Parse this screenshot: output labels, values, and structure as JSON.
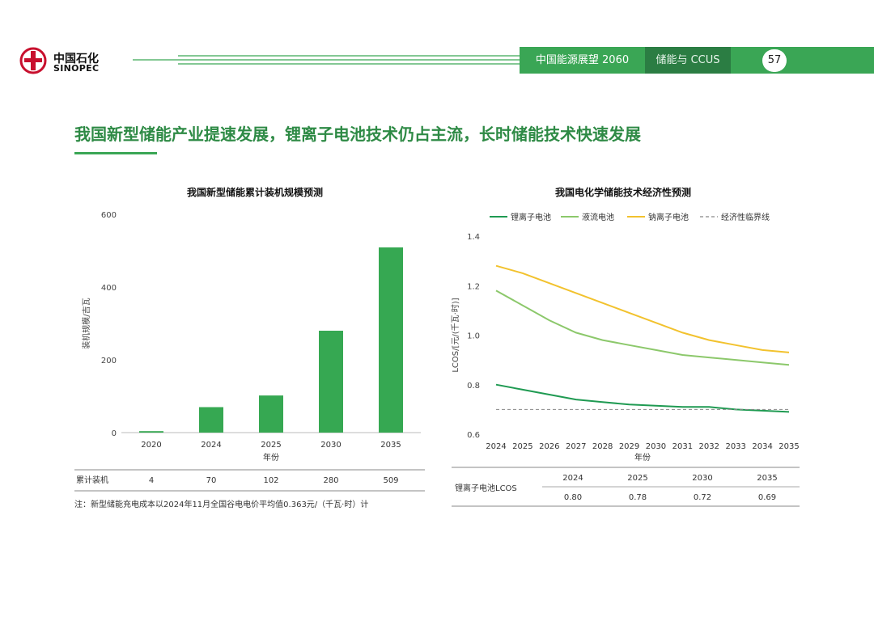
{
  "header": {
    "logo_cn": "中国石化",
    "logo_en": "SINOPEC",
    "tab_energy": "中国能源展望 2060",
    "tab_storage": "储能与 CCUS",
    "page_number": "57"
  },
  "page_title": "我国新型储能产业提速发展，锂离子电池技术仍占主流，长时储能技术快速发展",
  "footnote": "注：新型储能充电成本以2024年11月全国谷电电价平均值0.363元/（千瓦·时）计",
  "colors": {
    "brand_green": "#3aa655",
    "dark_green": "#2b7d43",
    "bar": "#36a852",
    "li_ion": "#1f9a52",
    "flow": "#8cc86b",
    "sodium": "#f2c22e",
    "threshold": "#888888"
  },
  "chart_data": [
    {
      "type": "bar",
      "title": "我国新型储能累计装机规模预测",
      "ylabel": "装机规模/吉瓦",
      "xlabel": "年份",
      "categories": [
        "2020",
        "2024",
        "2025",
        "2030",
        "2035"
      ],
      "values": [
        4,
        70,
        102,
        280,
        509
      ],
      "ylim": [
        0,
        600
      ],
      "yticks": [
        "0",
        "200",
        "400",
        "600"
      ],
      "table": {
        "row_label": "累计装机",
        "values": [
          "4",
          "70",
          "102",
          "280",
          "509"
        ]
      }
    },
    {
      "type": "line",
      "title": "我国电化学储能技术经济性预测",
      "ylabel": "LCOS/[元/(千瓦·时)]",
      "xlabel": "年份",
      "x": [
        "2024",
        "2025",
        "2026",
        "2027",
        "2028",
        "2029",
        "2030",
        "2031",
        "2032",
        "2033",
        "2034",
        "2035"
      ],
      "ylim": [
        0.6,
        1.4
      ],
      "yticks": [
        "0.6",
        "0.8",
        "1.0",
        "1.2",
        "1.4"
      ],
      "legend_position": "top",
      "series": [
        {
          "name": "锂离子电池",
          "values": [
            0.8,
            0.78,
            0.76,
            0.74,
            0.73,
            0.72,
            0.715,
            0.71,
            0.71,
            0.7,
            0.695,
            0.69
          ]
        },
        {
          "name": "液流电池",
          "values": [
            1.18,
            1.12,
            1.06,
            1.01,
            0.98,
            0.96,
            0.94,
            0.92,
            0.91,
            0.9,
            0.89,
            0.88
          ]
        },
        {
          "name": "钠离子电池",
          "values": [
            1.28,
            1.25,
            1.21,
            1.17,
            1.13,
            1.09,
            1.05,
            1.01,
            0.98,
            0.96,
            0.94,
            0.93
          ]
        },
        {
          "name": "经济性临界线",
          "values": [
            0.7,
            0.7,
            0.7,
            0.7,
            0.7,
            0.7,
            0.7,
            0.7,
            0.7,
            0.7,
            0.7,
            0.7
          ]
        }
      ],
      "table": {
        "row_label": "锂离子电池LCOS",
        "years": [
          "2024",
          "2025",
          "2030",
          "2035"
        ],
        "values": [
          "0.80",
          "0.78",
          "0.72",
          "0.69"
        ]
      }
    }
  ]
}
